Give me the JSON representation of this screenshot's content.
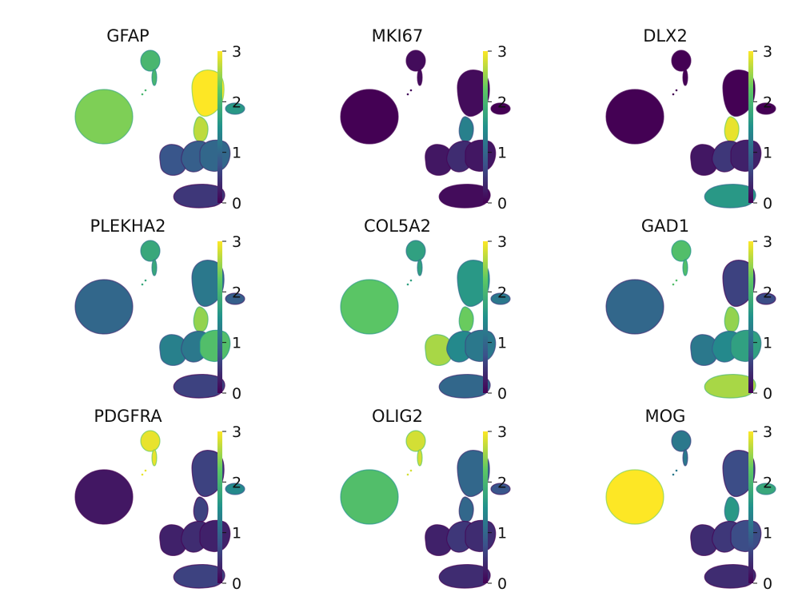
{
  "figure": {
    "colormap": "viridis",
    "colormap_stops": [
      "#440154",
      "#3b528b",
      "#21918c",
      "#5ec962",
      "#fde725"
    ]
  },
  "chart_data": [
    {
      "type": "scatter",
      "title": "GFAP",
      "colorbar": {
        "range": [
          0,
          3
        ],
        "ticks": [
          "0",
          "1",
          "2",
          "3"
        ]
      },
      "cluster_expression": {
        "oligo": 2.4,
        "opc": 2.0,
        "astro": 3.0,
        "astro_side": 1.6,
        "neck": 2.7,
        "mid_left": 0.8,
        "mid_right": 1.0,
        "mid_center": 0.9,
        "bottom": 0.5
      }
    },
    {
      "type": "scatter",
      "title": "MKI67",
      "colorbar": {
        "range": [
          0,
          3
        ],
        "ticks": [
          "0",
          "1",
          "2",
          "3"
        ]
      },
      "cluster_expression": {
        "oligo": 0.0,
        "opc": 0.1,
        "astro": 0.1,
        "astro_side": 0.0,
        "neck": 1.3,
        "mid_left": 0.2,
        "mid_right": 0.2,
        "mid_center": 0.4,
        "bottom": 0.1
      }
    },
    {
      "type": "scatter",
      "title": "DLX2",
      "colorbar": {
        "range": [
          0,
          3
        ],
        "ticks": [
          "0",
          "1",
          "2",
          "3"
        ]
      },
      "cluster_expression": {
        "oligo": 0.0,
        "opc": 0.0,
        "astro": 0.0,
        "astro_side": 0.0,
        "neck": 2.9,
        "mid_left": 0.2,
        "mid_right": 0.3,
        "mid_center": 0.5,
        "bottom": 1.6
      }
    },
    {
      "type": "scatter",
      "title": "PLEKHA2",
      "colorbar": {
        "range": [
          0,
          3
        ],
        "ticks": [
          "0",
          "1",
          "2",
          "3"
        ]
      },
      "cluster_expression": {
        "oligo": 1.0,
        "opc": 1.8,
        "astro": 1.2,
        "astro_side": 0.9,
        "neck": 2.5,
        "mid_left": 1.3,
        "mid_right": 2.1,
        "mid_center": 1.2,
        "bottom": 0.6
      }
    },
    {
      "type": "scatter",
      "title": "COL5A2",
      "colorbar": {
        "range": [
          0,
          3
        ],
        "ticks": [
          "0",
          "1",
          "2",
          "3"
        ]
      },
      "cluster_expression": {
        "oligo": 2.2,
        "opc": 1.7,
        "astro": 1.6,
        "astro_side": 1.2,
        "neck": 2.3,
        "mid_left": 2.6,
        "mid_right": 1.2,
        "mid_center": 1.4,
        "bottom": 1.0
      }
    },
    {
      "type": "scatter",
      "title": "GAD1",
      "colorbar": {
        "range": [
          0,
          3
        ],
        "ticks": [
          "0",
          "1",
          "2",
          "3"
        ]
      },
      "cluster_expression": {
        "oligo": 1.0,
        "opc": 2.1,
        "astro": 0.6,
        "astro_side": 0.7,
        "neck": 2.5,
        "mid_left": 1.2,
        "mid_right": 1.7,
        "mid_center": 1.4,
        "bottom": 2.6
      }
    },
    {
      "type": "scatter",
      "title": "PDGFRA",
      "colorbar": {
        "range": [
          0,
          3
        ],
        "ticks": [
          "0",
          "1",
          "2",
          "3"
        ]
      },
      "cluster_expression": {
        "oligo": 0.2,
        "opc": 2.9,
        "astro": 0.6,
        "astro_side": 1.4,
        "neck": 0.6,
        "mid_left": 0.3,
        "mid_right": 0.3,
        "mid_center": 0.4,
        "bottom": 0.6
      }
    },
    {
      "type": "scatter",
      "title": "OLIG2",
      "colorbar": {
        "range": [
          0,
          3
        ],
        "ticks": [
          "0",
          "1",
          "2",
          "3"
        ]
      },
      "cluster_expression": {
        "oligo": 2.1,
        "opc": 2.8,
        "astro": 1.0,
        "astro_side": 0.8,
        "neck": 1.0,
        "mid_left": 0.3,
        "mid_right": 0.4,
        "mid_center": 0.5,
        "bottom": 0.4
      }
    },
    {
      "type": "scatter",
      "title": "MOG",
      "colorbar": {
        "range": [
          0,
          3
        ],
        "ticks": [
          "0",
          "1",
          "2",
          "3"
        ]
      },
      "cluster_expression": {
        "oligo": 3.0,
        "opc": 1.2,
        "astro": 0.7,
        "astro_side": 1.8,
        "neck": 1.6,
        "mid_left": 0.4,
        "mid_right": 0.7,
        "mid_center": 0.5,
        "bottom": 0.4
      }
    }
  ]
}
